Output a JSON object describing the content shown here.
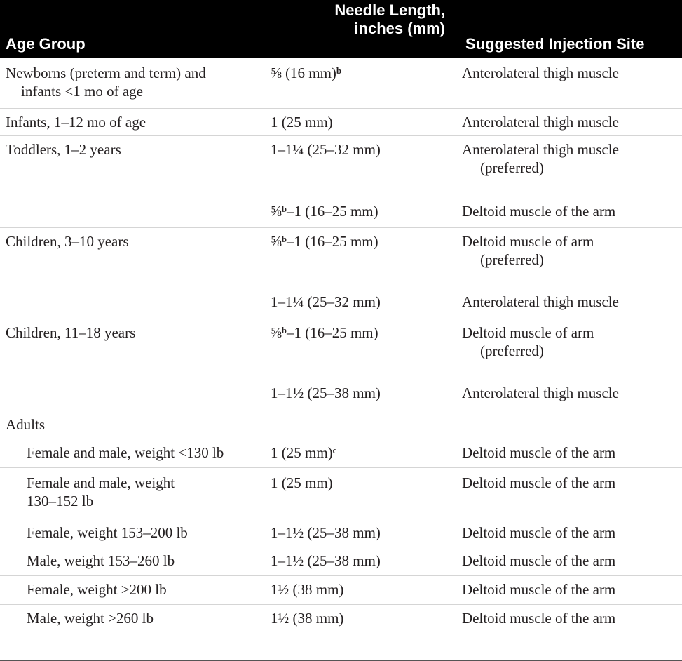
{
  "table": {
    "headers": {
      "age_group": "Age Group",
      "needle_length_line1": "Needle Length,",
      "needle_length_line2": "inches (mm)",
      "site": "Suggested Injection Site"
    },
    "rows": [
      {
        "age": "Newborns (preterm and term) and",
        "age_cont": "infants <1 mo of age",
        "needle": "⅝ (16 mm)",
        "needle_ref": "b",
        "site": "Anterolateral thigh muscle",
        "site_cont": ""
      },
      {
        "age": "Infants, 1–12 mo of age",
        "age_cont": "",
        "needle": "1 (25 mm)",
        "needle_ref": "",
        "site": "Anterolateral thigh muscle",
        "site_cont": ""
      },
      {
        "age": "Toddlers, 1–2 years",
        "age_cont": "",
        "needle": "1–1¼ (25–32 mm)",
        "needle_ref": "",
        "site": "Anterolateral thigh muscle",
        "site_cont": "(preferred)"
      },
      {
        "age": "",
        "age_cont": "",
        "needle_pre": "⅝",
        "needle_pre_ref": "b",
        "needle": "–1 (16–25 mm)",
        "site": "Deltoid muscle of the arm",
        "site_cont": ""
      },
      {
        "age": "Children, 3–10 years",
        "age_cont": "",
        "needle_pre": "⅝",
        "needle_pre_ref": "b",
        "needle": "–1 (16–25 mm)",
        "site": "Deltoid muscle of arm",
        "site_cont": "(preferred)"
      },
      {
        "age": "",
        "age_cont": "",
        "needle": "1–1¼ (25–32 mm)",
        "needle_ref": "",
        "site": "Anterolateral thigh muscle",
        "site_cont": ""
      },
      {
        "age": "Children, 11–18 years",
        "age_cont": "",
        "needle_pre": "⅝",
        "needle_pre_ref": "b",
        "needle": "–1 (16–25 mm)",
        "site": "Deltoid muscle of arm",
        "site_cont": "(preferred)"
      },
      {
        "age": "",
        "age_cont": "",
        "needle": "1–1½ (25–38 mm)",
        "needle_ref": "",
        "site": "Anterolateral thigh muscle",
        "site_cont": ""
      },
      {
        "age": "Adults",
        "age_cont": "",
        "needle": "",
        "needle_ref": "",
        "site": "",
        "site_cont": ""
      },
      {
        "age": "Female and male, weight <130 lb",
        "age_cont": "",
        "needle": "1 (25 mm)",
        "needle_ref": "c",
        "site": "Deltoid muscle of the arm",
        "site_cont": ""
      },
      {
        "age": "Female and male, weight",
        "age_cont": "130–152 lb",
        "needle": "1 (25 mm)",
        "needle_ref": "",
        "site": "Deltoid muscle of the arm",
        "site_cont": ""
      },
      {
        "age": "Female, weight 153–200 lb",
        "age_cont": "",
        "needle": "1–1½ (25–38 mm)",
        "needle_ref": "",
        "site": "Deltoid muscle of the arm",
        "site_cont": ""
      },
      {
        "age": "Male, weight 153–260 lb",
        "age_cont": "",
        "needle": "1–1½ (25–38 mm)",
        "needle_ref": "",
        "site": "Deltoid muscle of the arm",
        "site_cont": ""
      },
      {
        "age": "Female, weight >200 lb",
        "age_cont": "",
        "needle": "1½ (38 mm)",
        "needle_ref": "",
        "site": "Deltoid muscle of the arm",
        "site_cont": ""
      },
      {
        "age": "Male, weight >260 lb",
        "age_cont": "",
        "needle": "1½ (38 mm)",
        "needle_ref": "",
        "site": "Deltoid muscle of the arm",
        "site_cont": ""
      }
    ]
  }
}
